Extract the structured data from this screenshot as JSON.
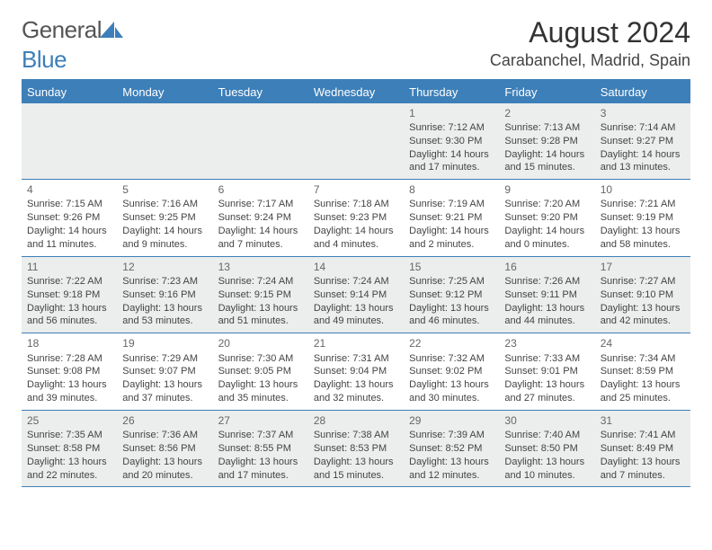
{
  "logo": {
    "word1": "General",
    "word2": "Blue"
  },
  "title": "August 2024",
  "location": "Carabanchel, Madrid, Spain",
  "colors": {
    "brand": "#3d7fb8",
    "headerText": "#ffffff",
    "shadedCell": "#eceded",
    "bodyText": "#444444",
    "dayNum": "#666666",
    "background": "#ffffff"
  },
  "daysOfWeek": [
    "Sunday",
    "Monday",
    "Tuesday",
    "Wednesday",
    "Thursday",
    "Friday",
    "Saturday"
  ],
  "weeks": [
    [
      null,
      null,
      null,
      null,
      {
        "n": "1",
        "sr": "7:12 AM",
        "ss": "9:30 PM",
        "dl": "14 hours and 17 minutes."
      },
      {
        "n": "2",
        "sr": "7:13 AM",
        "ss": "9:28 PM",
        "dl": "14 hours and 15 minutes."
      },
      {
        "n": "3",
        "sr": "7:14 AM",
        "ss": "9:27 PM",
        "dl": "14 hours and 13 minutes."
      }
    ],
    [
      {
        "n": "4",
        "sr": "7:15 AM",
        "ss": "9:26 PM",
        "dl": "14 hours and 11 minutes."
      },
      {
        "n": "5",
        "sr": "7:16 AM",
        "ss": "9:25 PM",
        "dl": "14 hours and 9 minutes."
      },
      {
        "n": "6",
        "sr": "7:17 AM",
        "ss": "9:24 PM",
        "dl": "14 hours and 7 minutes."
      },
      {
        "n": "7",
        "sr": "7:18 AM",
        "ss": "9:23 PM",
        "dl": "14 hours and 4 minutes."
      },
      {
        "n": "8",
        "sr": "7:19 AM",
        "ss": "9:21 PM",
        "dl": "14 hours and 2 minutes."
      },
      {
        "n": "9",
        "sr": "7:20 AM",
        "ss": "9:20 PM",
        "dl": "14 hours and 0 minutes."
      },
      {
        "n": "10",
        "sr": "7:21 AM",
        "ss": "9:19 PM",
        "dl": "13 hours and 58 minutes."
      }
    ],
    [
      {
        "n": "11",
        "sr": "7:22 AM",
        "ss": "9:18 PM",
        "dl": "13 hours and 56 minutes."
      },
      {
        "n": "12",
        "sr": "7:23 AM",
        "ss": "9:16 PM",
        "dl": "13 hours and 53 minutes."
      },
      {
        "n": "13",
        "sr": "7:24 AM",
        "ss": "9:15 PM",
        "dl": "13 hours and 51 minutes."
      },
      {
        "n": "14",
        "sr": "7:24 AM",
        "ss": "9:14 PM",
        "dl": "13 hours and 49 minutes."
      },
      {
        "n": "15",
        "sr": "7:25 AM",
        "ss": "9:12 PM",
        "dl": "13 hours and 46 minutes."
      },
      {
        "n": "16",
        "sr": "7:26 AM",
        "ss": "9:11 PM",
        "dl": "13 hours and 44 minutes."
      },
      {
        "n": "17",
        "sr": "7:27 AM",
        "ss": "9:10 PM",
        "dl": "13 hours and 42 minutes."
      }
    ],
    [
      {
        "n": "18",
        "sr": "7:28 AM",
        "ss": "9:08 PM",
        "dl": "13 hours and 39 minutes."
      },
      {
        "n": "19",
        "sr": "7:29 AM",
        "ss": "9:07 PM",
        "dl": "13 hours and 37 minutes."
      },
      {
        "n": "20",
        "sr": "7:30 AM",
        "ss": "9:05 PM",
        "dl": "13 hours and 35 minutes."
      },
      {
        "n": "21",
        "sr": "7:31 AM",
        "ss": "9:04 PM",
        "dl": "13 hours and 32 minutes."
      },
      {
        "n": "22",
        "sr": "7:32 AM",
        "ss": "9:02 PM",
        "dl": "13 hours and 30 minutes."
      },
      {
        "n": "23",
        "sr": "7:33 AM",
        "ss": "9:01 PM",
        "dl": "13 hours and 27 minutes."
      },
      {
        "n": "24",
        "sr": "7:34 AM",
        "ss": "8:59 PM",
        "dl": "13 hours and 25 minutes."
      }
    ],
    [
      {
        "n": "25",
        "sr": "7:35 AM",
        "ss": "8:58 PM",
        "dl": "13 hours and 22 minutes."
      },
      {
        "n": "26",
        "sr": "7:36 AM",
        "ss": "8:56 PM",
        "dl": "13 hours and 20 minutes."
      },
      {
        "n": "27",
        "sr": "7:37 AM",
        "ss": "8:55 PM",
        "dl": "13 hours and 17 minutes."
      },
      {
        "n": "28",
        "sr": "7:38 AM",
        "ss": "8:53 PM",
        "dl": "13 hours and 15 minutes."
      },
      {
        "n": "29",
        "sr": "7:39 AM",
        "ss": "8:52 PM",
        "dl": "13 hours and 12 minutes."
      },
      {
        "n": "30",
        "sr": "7:40 AM",
        "ss": "8:50 PM",
        "dl": "13 hours and 10 minutes."
      },
      {
        "n": "31",
        "sr": "7:41 AM",
        "ss": "8:49 PM",
        "dl": "13 hours and 7 minutes."
      }
    ]
  ],
  "labels": {
    "sunrise": "Sunrise:",
    "sunset": "Sunset:",
    "daylight": "Daylight:"
  }
}
